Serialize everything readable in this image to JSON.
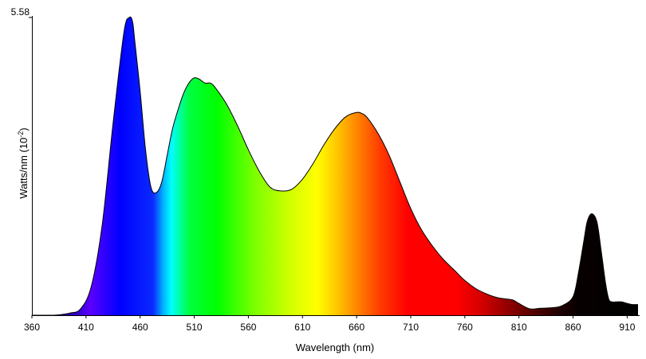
{
  "chart_data": {
    "type": "area",
    "title": "",
    "xlabel": "Wavelength (nm)",
    "ylabel": "Watts/nm (10-2)",
    "ylabel_parts": {
      "base": "Watts/nm (10",
      "exponent": "-2",
      "suffix": ")"
    },
    "xlim": [
      360,
      920
    ],
    "ylim": [
      0,
      5.58
    ],
    "x_ticks": [
      360,
      410,
      460,
      510,
      560,
      610,
      660,
      710,
      760,
      810,
      860,
      910
    ],
    "y_ticks": [
      5.58
    ],
    "y_tick_labels": [
      "5.58"
    ],
    "grid": false,
    "legend": "none",
    "colors": {
      "outline": "#000000",
      "axis": "#000000",
      "background": "#ffffff"
    },
    "series": [
      {
        "x": [
          360,
          380,
          395,
          405,
          415,
          425,
          435,
          445,
          450,
          453,
          455,
          460,
          465,
          470,
          475,
          480,
          485,
          490,
          495,
          500,
          505,
          510,
          515,
          520,
          525,
          530,
          540,
          550,
          560,
          570,
          580,
          590,
          600,
          610,
          620,
          630,
          640,
          650,
          660,
          665,
          670,
          680,
          690,
          700,
          710,
          720,
          730,
          740,
          750,
          760,
          770,
          780,
          790,
          800,
          805,
          810,
          820,
          830,
          840,
          850,
          860,
          865,
          870,
          873,
          877,
          882,
          886,
          890,
          893,
          896,
          900,
          905,
          910,
          915,
          920
        ],
        "y": [
          0.0,
          0.0,
          0.04,
          0.12,
          0.55,
          1.7,
          3.6,
          5.3,
          5.58,
          5.5,
          5.15,
          4.2,
          3.1,
          2.4,
          2.3,
          2.5,
          3.0,
          3.5,
          3.85,
          4.15,
          4.35,
          4.45,
          4.42,
          4.35,
          4.35,
          4.25,
          3.95,
          3.55,
          3.1,
          2.7,
          2.4,
          2.33,
          2.36,
          2.55,
          2.85,
          3.2,
          3.5,
          3.72,
          3.8,
          3.78,
          3.7,
          3.4,
          3.0,
          2.5,
          2.0,
          1.6,
          1.3,
          1.05,
          0.85,
          0.65,
          0.5,
          0.4,
          0.33,
          0.3,
          0.28,
          0.22,
          0.12,
          0.13,
          0.14,
          0.18,
          0.35,
          0.8,
          1.4,
          1.75,
          1.9,
          1.75,
          1.2,
          0.6,
          0.3,
          0.25,
          0.25,
          0.25,
          0.22,
          0.2,
          0.2
        ]
      }
    ]
  }
}
